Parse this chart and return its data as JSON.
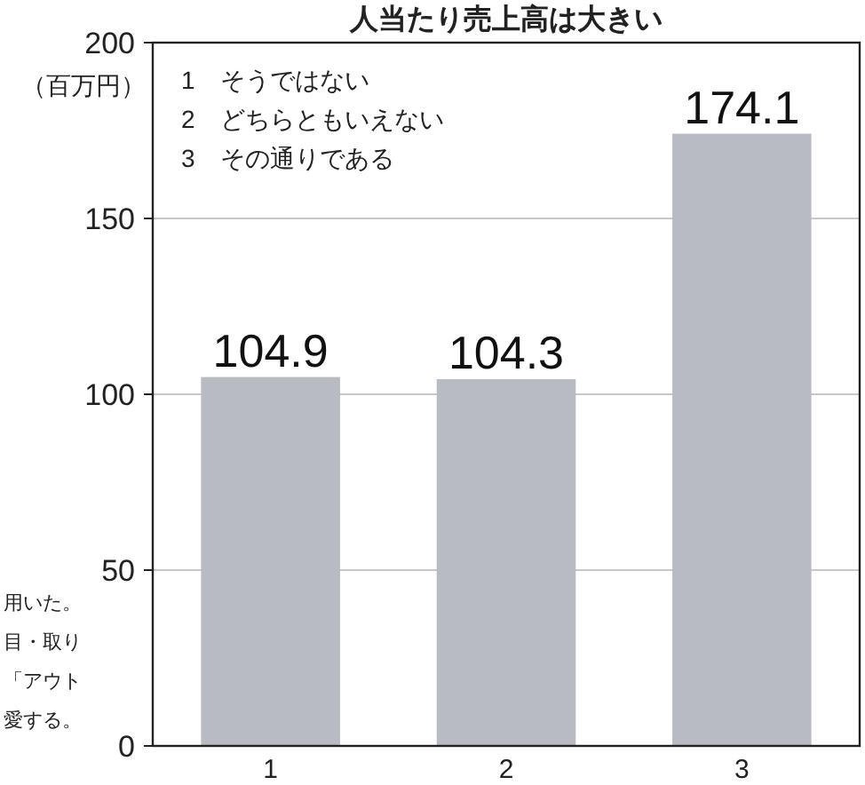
{
  "chart_data": {
    "type": "bar",
    "title": "人当たり売上高は大きい",
    "ylabel": "（百万円）",
    "categories": [
      "1",
      "2",
      "3"
    ],
    "values": [
      104.9,
      104.3,
      174.1
    ],
    "color": "#b8bbc2",
    "ylim": [
      0,
      200
    ],
    "yticks": [
      0,
      50,
      100,
      150,
      200
    ],
    "grid": "y",
    "data_labels": true,
    "annotations": [
      "1　そうではない",
      "2　どちらともいえない",
      "3　その通りである",
      "用いた。",
      "目・取り",
      "「アウト",
      "愛する。"
    ]
  }
}
